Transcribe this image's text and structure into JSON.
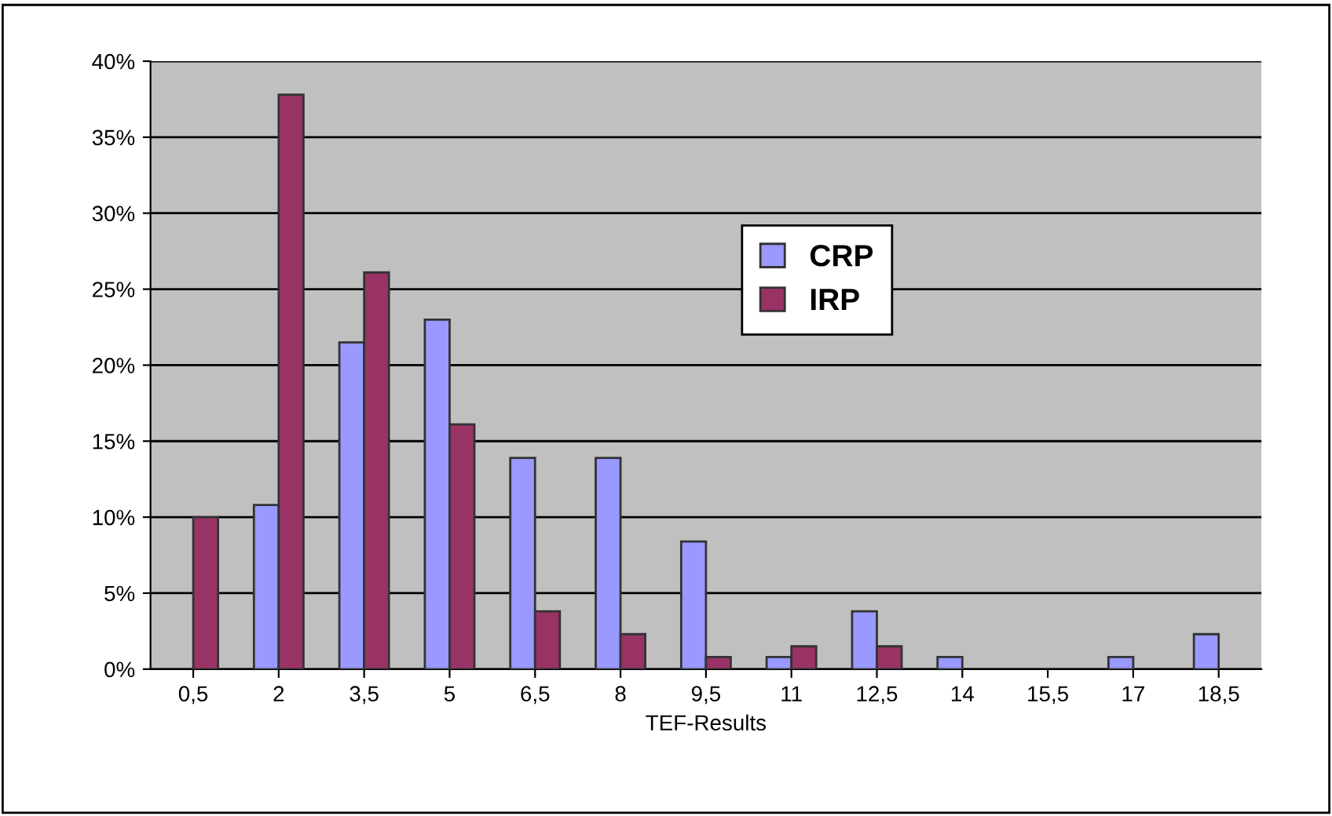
{
  "chart_data": {
    "type": "bar",
    "xlabel": "TEF-Results",
    "categories": [
      "0,5",
      "2",
      "3,5",
      "5",
      "6,5",
      "8",
      "9,5",
      "11",
      "12,5",
      "14",
      "15,5",
      "17",
      "18,5"
    ],
    "series": [
      {
        "name": "CRP",
        "color": "#9999ff",
        "values": [
          0,
          10.8,
          21.5,
          23,
          13.9,
          13.9,
          8.4,
          0.8,
          3.8,
          0.8,
          0,
          0.8,
          2.3
        ]
      },
      {
        "name": "IRP",
        "color": "#993366",
        "values": [
          10,
          37.8,
          26.1,
          16.1,
          3.8,
          2.3,
          0.8,
          1.5,
          1.5,
          0,
          0,
          0,
          0
        ]
      }
    ],
    "ylim": [
      0,
      40
    ],
    "yticks": [
      {
        "value": 0,
        "label": "0%"
      },
      {
        "value": 5,
        "label": "5%"
      },
      {
        "value": 10,
        "label": "10%"
      },
      {
        "value": 15,
        "label": "15%"
      },
      {
        "value": 20,
        "label": "20%"
      },
      {
        "value": 25,
        "label": "25%"
      },
      {
        "value": 30,
        "label": "30%"
      },
      {
        "value": 35,
        "label": "35%"
      },
      {
        "value": 40,
        "label": "40%"
      }
    ],
    "grid": "y",
    "legend": "center"
  }
}
